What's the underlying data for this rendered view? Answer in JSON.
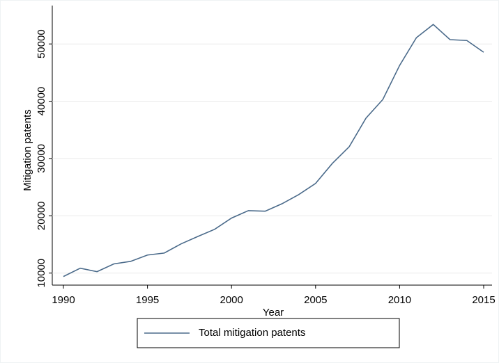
{
  "chart_data": {
    "type": "line",
    "x": [
      1990,
      1991,
      1992,
      1993,
      1994,
      1995,
      1996,
      1997,
      1998,
      1999,
      2000,
      2001,
      2002,
      2003,
      2004,
      2005,
      2006,
      2007,
      2008,
      2009,
      2010,
      2011,
      2012,
      2013,
      2014,
      2015
    ],
    "series": [
      {
        "name": "Total mitigation patents",
        "color": "#4a6a8a",
        "values": [
          9400,
          10850,
          10250,
          11600,
          12050,
          13150,
          13500,
          15100,
          16400,
          17650,
          19600,
          20900,
          20800,
          22100,
          23700,
          25650,
          29150,
          32050,
          37050,
          40300,
          46250,
          51100,
          53400,
          50750,
          50600,
          48550
        ]
      }
    ],
    "xlabel": "Year",
    "ylabel": "Mitigation patents",
    "xlim": [
      1990,
      2015
    ],
    "xticks": [
      1990,
      1995,
      2000,
      2005,
      2010,
      2015
    ],
    "ylim": [
      7900,
      56700
    ],
    "yticks": [
      10000,
      20000,
      30000,
      40000,
      50000
    ],
    "grid": true
  }
}
